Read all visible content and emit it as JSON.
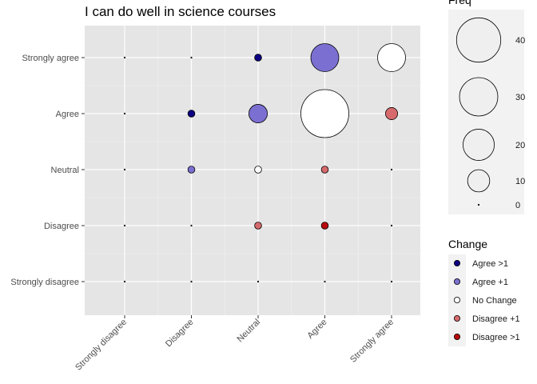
{
  "chart_data": {
    "type": "scatter",
    "title": "I can do well in science courses",
    "xlabel": "",
    "ylabel": "",
    "x_categories": [
      "Strongly disagree",
      "Disagree",
      "Neutral",
      "Agree",
      "Strongly agree"
    ],
    "y_categories": [
      "Strongly disagree",
      "Disagree",
      "Neutral",
      "Agree",
      "Strongly agree"
    ],
    "grid": true,
    "size_legend": {
      "title": "Freq",
      "values": [
        40,
        30,
        20,
        10,
        0
      ],
      "placement": "right"
    },
    "color_legend": {
      "title": "Change",
      "placement": "right",
      "items": [
        {
          "label": "Agree >1",
          "color": "#0d0082"
        },
        {
          "label": "Agree +1",
          "color": "#7b70d1"
        },
        {
          "label": "No Change",
          "color": "#ffffff"
        },
        {
          "label": "Disagree +1",
          "color": "#d66a6c"
        },
        {
          "label": "Disagree >1",
          "color": "#b80b0b"
        }
      ]
    },
    "points": [
      {
        "x": "Strongly disagree",
        "y": "Strongly disagree",
        "freq": 0,
        "change": "No Change"
      },
      {
        "x": "Disagree",
        "y": "Strongly disagree",
        "freq": 0,
        "change": "Agree +1"
      },
      {
        "x": "Neutral",
        "y": "Strongly disagree",
        "freq": 0,
        "change": "Agree >1"
      },
      {
        "x": "Agree",
        "y": "Strongly disagree",
        "freq": 0,
        "change": "Agree >1"
      },
      {
        "x": "Strongly agree",
        "y": "Strongly disagree",
        "freq": 0,
        "change": "Agree >1"
      },
      {
        "x": "Strongly disagree",
        "y": "Disagree",
        "freq": 0,
        "change": "Disagree +1"
      },
      {
        "x": "Disagree",
        "y": "Disagree",
        "freq": 0,
        "change": "No Change"
      },
      {
        "x": "Neutral",
        "y": "Disagree",
        "freq": 1,
        "change": "Disagree +1"
      },
      {
        "x": "Agree",
        "y": "Disagree",
        "freq": 1,
        "change": "Disagree >1"
      },
      {
        "x": "Strongly agree",
        "y": "Disagree",
        "freq": 0,
        "change": "Disagree >1"
      },
      {
        "x": "Strongly disagree",
        "y": "Neutral",
        "freq": 0,
        "change": "Disagree >1"
      },
      {
        "x": "Disagree",
        "y": "Neutral",
        "freq": 1,
        "change": "Agree +1"
      },
      {
        "x": "Neutral",
        "y": "Neutral",
        "freq": 1,
        "change": "No Change"
      },
      {
        "x": "Agree",
        "y": "Neutral",
        "freq": 1,
        "change": "Disagree +1"
      },
      {
        "x": "Strongly agree",
        "y": "Neutral",
        "freq": 0,
        "change": "Disagree >1"
      },
      {
        "x": "Strongly disagree",
        "y": "Agree",
        "freq": 0,
        "change": "Disagree >1"
      },
      {
        "x": "Disagree",
        "y": "Agree",
        "freq": 1,
        "change": "Agree >1"
      },
      {
        "x": "Neutral",
        "y": "Agree",
        "freq": 7,
        "change": "Agree +1"
      },
      {
        "x": "Agree",
        "y": "Agree",
        "freq": 47,
        "change": "No Change"
      },
      {
        "x": "Strongly agree",
        "y": "Agree",
        "freq": 3,
        "change": "Disagree +1"
      },
      {
        "x": "Strongly disagree",
        "y": "Strongly agree",
        "freq": 0,
        "change": "Disagree >1"
      },
      {
        "x": "Disagree",
        "y": "Strongly agree",
        "freq": 0,
        "change": "Disagree >1"
      },
      {
        "x": "Neutral",
        "y": "Strongly agree",
        "freq": 1,
        "change": "Agree >1"
      },
      {
        "x": "Agree",
        "y": "Strongly agree",
        "freq": 16,
        "change": "Agree +1"
      },
      {
        "x": "Strongly agree",
        "y": "Strongly agree",
        "freq": 16,
        "change": "No Change"
      }
    ]
  }
}
